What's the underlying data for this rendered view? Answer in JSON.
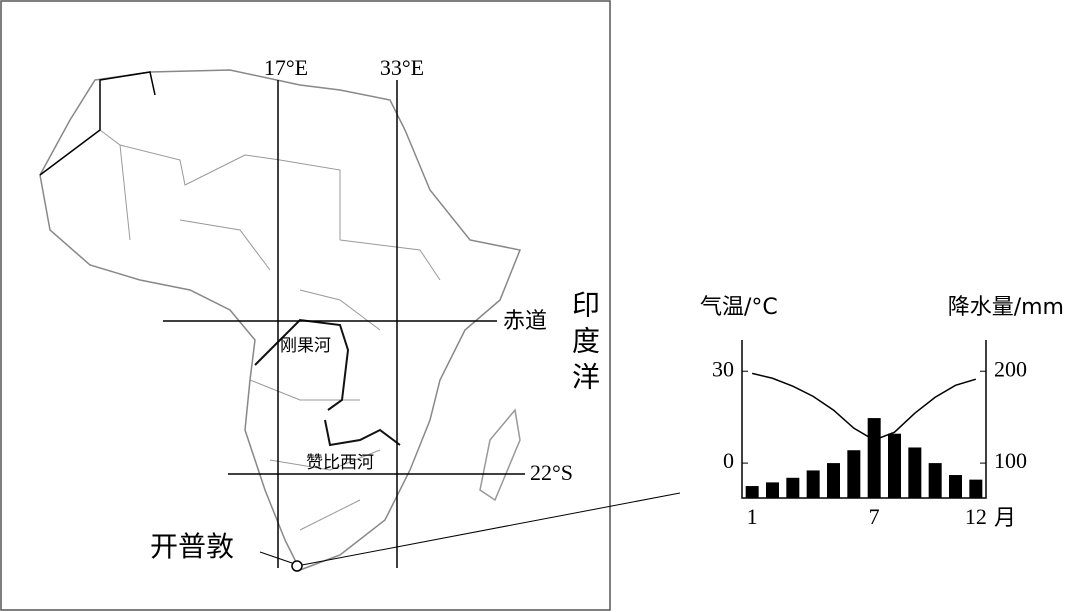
{
  "map": {
    "meridian_west": "17°E",
    "meridian_east": "33°E",
    "equator": "赤道",
    "tropic": "22°S",
    "ocean": "印度洋",
    "congo": "刚果河",
    "zambezi": "赞比西河",
    "city": "开普敦"
  },
  "chart_data": {
    "type": "climate",
    "y_label": "气温/°C",
    "y2_label": "降水量/mm",
    "x_label": "月",
    "categories": [
      "1",
      null,
      null,
      null,
      null,
      null,
      "7",
      null,
      null,
      null,
      null,
      "12"
    ],
    "series": [
      {
        "name": "气温",
        "color": "#000000",
        "type": "line",
        "values": [
          29.3,
          27.7,
          25.1,
          21.8,
          17.3,
          11.4,
          7.5,
          10.1,
          16.3,
          21.5,
          25.4,
          27.4
        ]
      },
      {
        "name": "降水量",
        "color": "#000000",
        "type": "bar",
        "axis": "y2",
        "values": [
          75,
          79,
          84,
          92,
          100,
          114,
          149,
          132,
          117,
          100,
          87,
          82
        ]
      }
    ],
    "ylim": [
      -11.4,
      40.2
    ],
    "yticks": [
      0,
      30
    ],
    "y2lim": [
      62,
      234
    ],
    "y2ticks": [
      100,
      200
    ]
  }
}
